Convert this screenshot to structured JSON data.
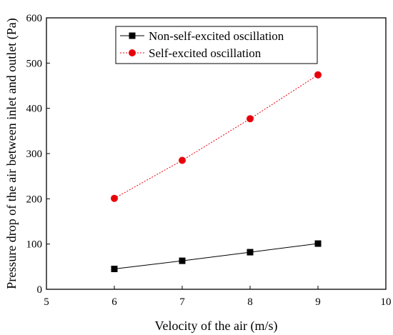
{
  "chart_data": {
    "type": "line",
    "title": "",
    "xlabel": "Velocity of the air (m/s)",
    "ylabel": "Pressure drop of  the air between inlet and outlet (Pa)",
    "xlim": [
      5,
      10
    ],
    "ylim": [
      0,
      600
    ],
    "xticks": [
      5,
      6,
      7,
      8,
      9,
      10
    ],
    "yticks": [
      0,
      100,
      200,
      300,
      400,
      500,
      600
    ],
    "grid": false,
    "legend_position": "top-center",
    "series": [
      {
        "name": "Non-self-excited oscillation",
        "x": [
          6,
          7,
          8,
          9
        ],
        "values": [
          45,
          63,
          82,
          101
        ],
        "color": "#000000",
        "marker": "square",
        "line_style": "solid"
      },
      {
        "name": "Self-excited oscillation",
        "x": [
          6,
          7,
          8,
          9
        ],
        "values": [
          201,
          285,
          377,
          474
        ],
        "color": "#e8000b",
        "marker": "circle",
        "line_style": "dotted"
      }
    ]
  }
}
